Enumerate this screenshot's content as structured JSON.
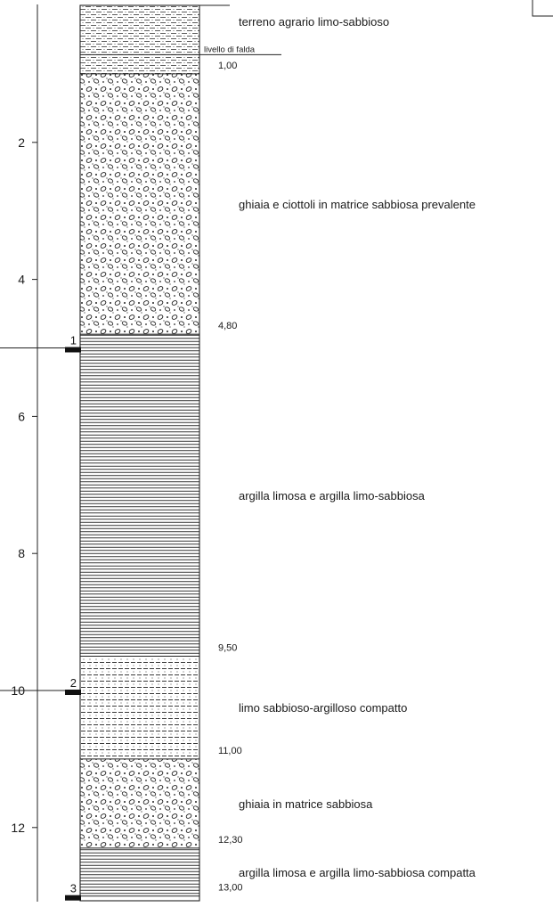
{
  "axis": {
    "ticks": [
      {
        "depth": 2,
        "label": "2"
      },
      {
        "depth": 4,
        "label": "4"
      },
      {
        "depth": 6,
        "label": "6"
      },
      {
        "depth": 8,
        "label": "8"
      },
      {
        "depth": 10,
        "label": "10"
      },
      {
        "depth": 12,
        "label": "12"
      }
    ]
  },
  "water_table": {
    "depth": 0.72,
    "label": "livello di falda"
  },
  "layers": [
    {
      "top": 0.0,
      "bottom": 1.0,
      "pattern": "silty-sand",
      "description": "terreno agrario limo-sabbioso",
      "boundary_label": "1,00"
    },
    {
      "top": 1.0,
      "bottom": 4.8,
      "pattern": "gravel",
      "description": "ghiaia e ciottoli in matrice sabbiosa prevalente",
      "boundary_label": "4,80"
    },
    {
      "top": 4.8,
      "bottom": 9.5,
      "pattern": "clay",
      "description": "argilla limosa e argilla limo-sabbiosa",
      "boundary_label": "9,50"
    },
    {
      "top": 9.5,
      "bottom": 11.0,
      "pattern": "silt",
      "description": "limo sabbioso-argilloso compatto",
      "boundary_label": "11,00"
    },
    {
      "top": 11.0,
      "bottom": 12.3,
      "pattern": "gravel",
      "description": "ghiaia in matrice sabbiosa",
      "boundary_label": "12,30"
    },
    {
      "top": 12.3,
      "bottom": 13.0,
      "pattern": "clay",
      "description": "argilla limosa e argilla limo-sabbiosa compatta",
      "boundary_label": "13,00"
    }
  ],
  "samples": [
    {
      "label": "1",
      "depth": 5.0
    },
    {
      "label": "2",
      "depth": 10.0
    },
    {
      "label": "3",
      "depth": 13.0
    }
  ]
}
